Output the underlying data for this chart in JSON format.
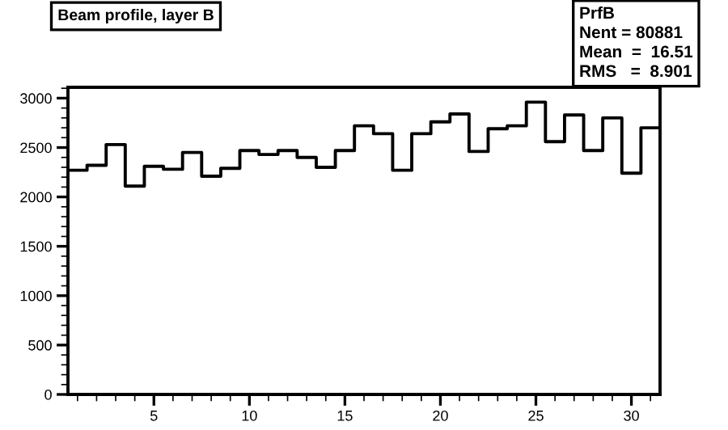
{
  "chart_data": {
    "type": "histogram",
    "title": "Beam profile, layer B",
    "bins": [
      0.5,
      1.5,
      2.5,
      3.5,
      4.5,
      5.5,
      6.5,
      7.5,
      8.5,
      9.5,
      10.5,
      11.5,
      12.5,
      13.5,
      14.5,
      15.5,
      16.5,
      17.5,
      18.5,
      19.5,
      20.5,
      21.5,
      22.5,
      23.5,
      24.5,
      25.5,
      26.5,
      27.5,
      28.5,
      29.5,
      30.5,
      31.5
    ],
    "values": [
      2270,
      2320,
      2530,
      2110,
      2310,
      2280,
      2450,
      2210,
      2290,
      2470,
      2430,
      2470,
      2400,
      2300,
      2470,
      2720,
      2640,
      2270,
      2640,
      2760,
      2840,
      2460,
      2690,
      2720,
      2960,
      2560,
      2830,
      2470,
      2800,
      2240,
      2700
    ],
    "color": "#000000",
    "xlim": [
      0.5,
      31.5
    ],
    "ylim": [
      0,
      3110
    ],
    "xticks": [
      5,
      10,
      15,
      20,
      25,
      30
    ],
    "yticks": [
      0,
      500,
      1000,
      1500,
      2000,
      2500,
      3000
    ],
    "grid": false,
    "annotations": [
      "PrfB",
      "Nent = 80881",
      "Mean  =  16.51",
      "RMS   =  8.901"
    ]
  }
}
